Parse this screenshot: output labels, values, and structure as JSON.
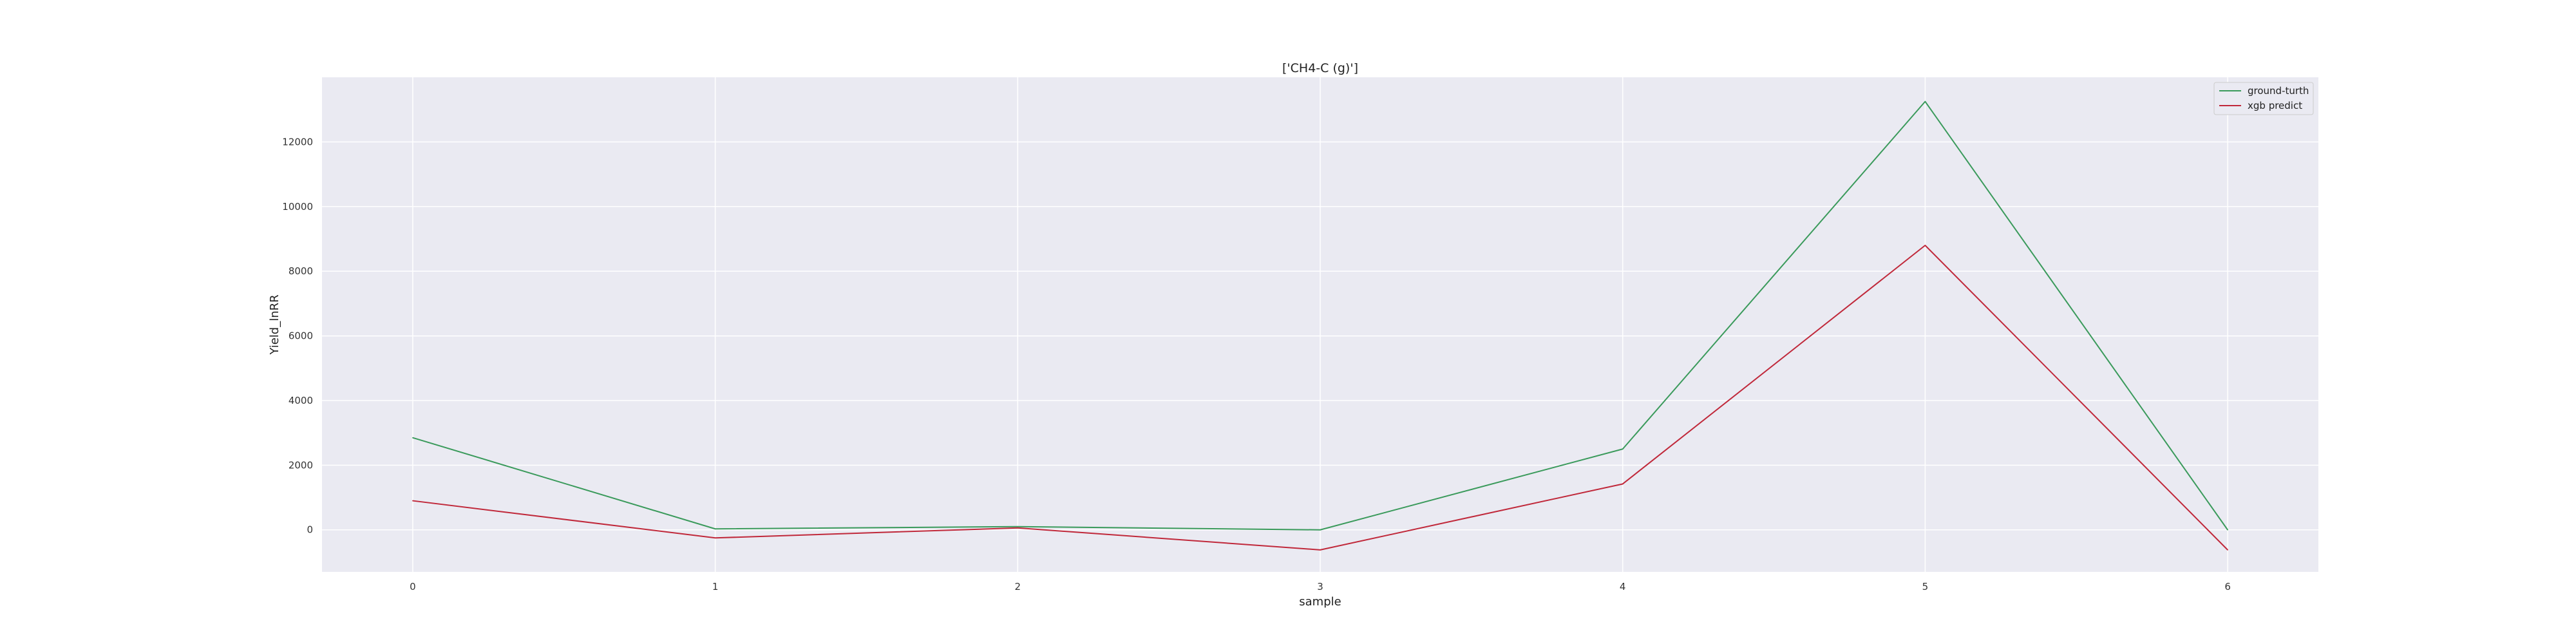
{
  "chart_data": {
    "type": "line",
    "title": "['CH4-C (g)']",
    "xlabel": "sample",
    "ylabel": "Yield_lnRR",
    "x": [
      0,
      1,
      2,
      3,
      4,
      5,
      6
    ],
    "xticks": [
      "0",
      "1",
      "2",
      "3",
      "4",
      "5",
      "6"
    ],
    "yticks": [
      "0",
      "2000",
      "4000",
      "6000",
      "8000",
      "10000",
      "12000"
    ],
    "xlim": [
      -0.3,
      6.3
    ],
    "ylim": [
      -1300,
      14000
    ],
    "grid": true,
    "legend_position": "top-right",
    "series": [
      {
        "name": "ground-turth",
        "color": "#3a9a5b",
        "values": [
          2850,
          30,
          100,
          0,
          2500,
          13250,
          0
        ]
      },
      {
        "name": "xgb predict",
        "color": "#c0283a",
        "values": [
          900,
          -250,
          60,
          -620,
          1420,
          8800,
          -620
        ]
      }
    ],
    "background_color": "#eaeaf2",
    "grid_color": "#ffffff"
  }
}
